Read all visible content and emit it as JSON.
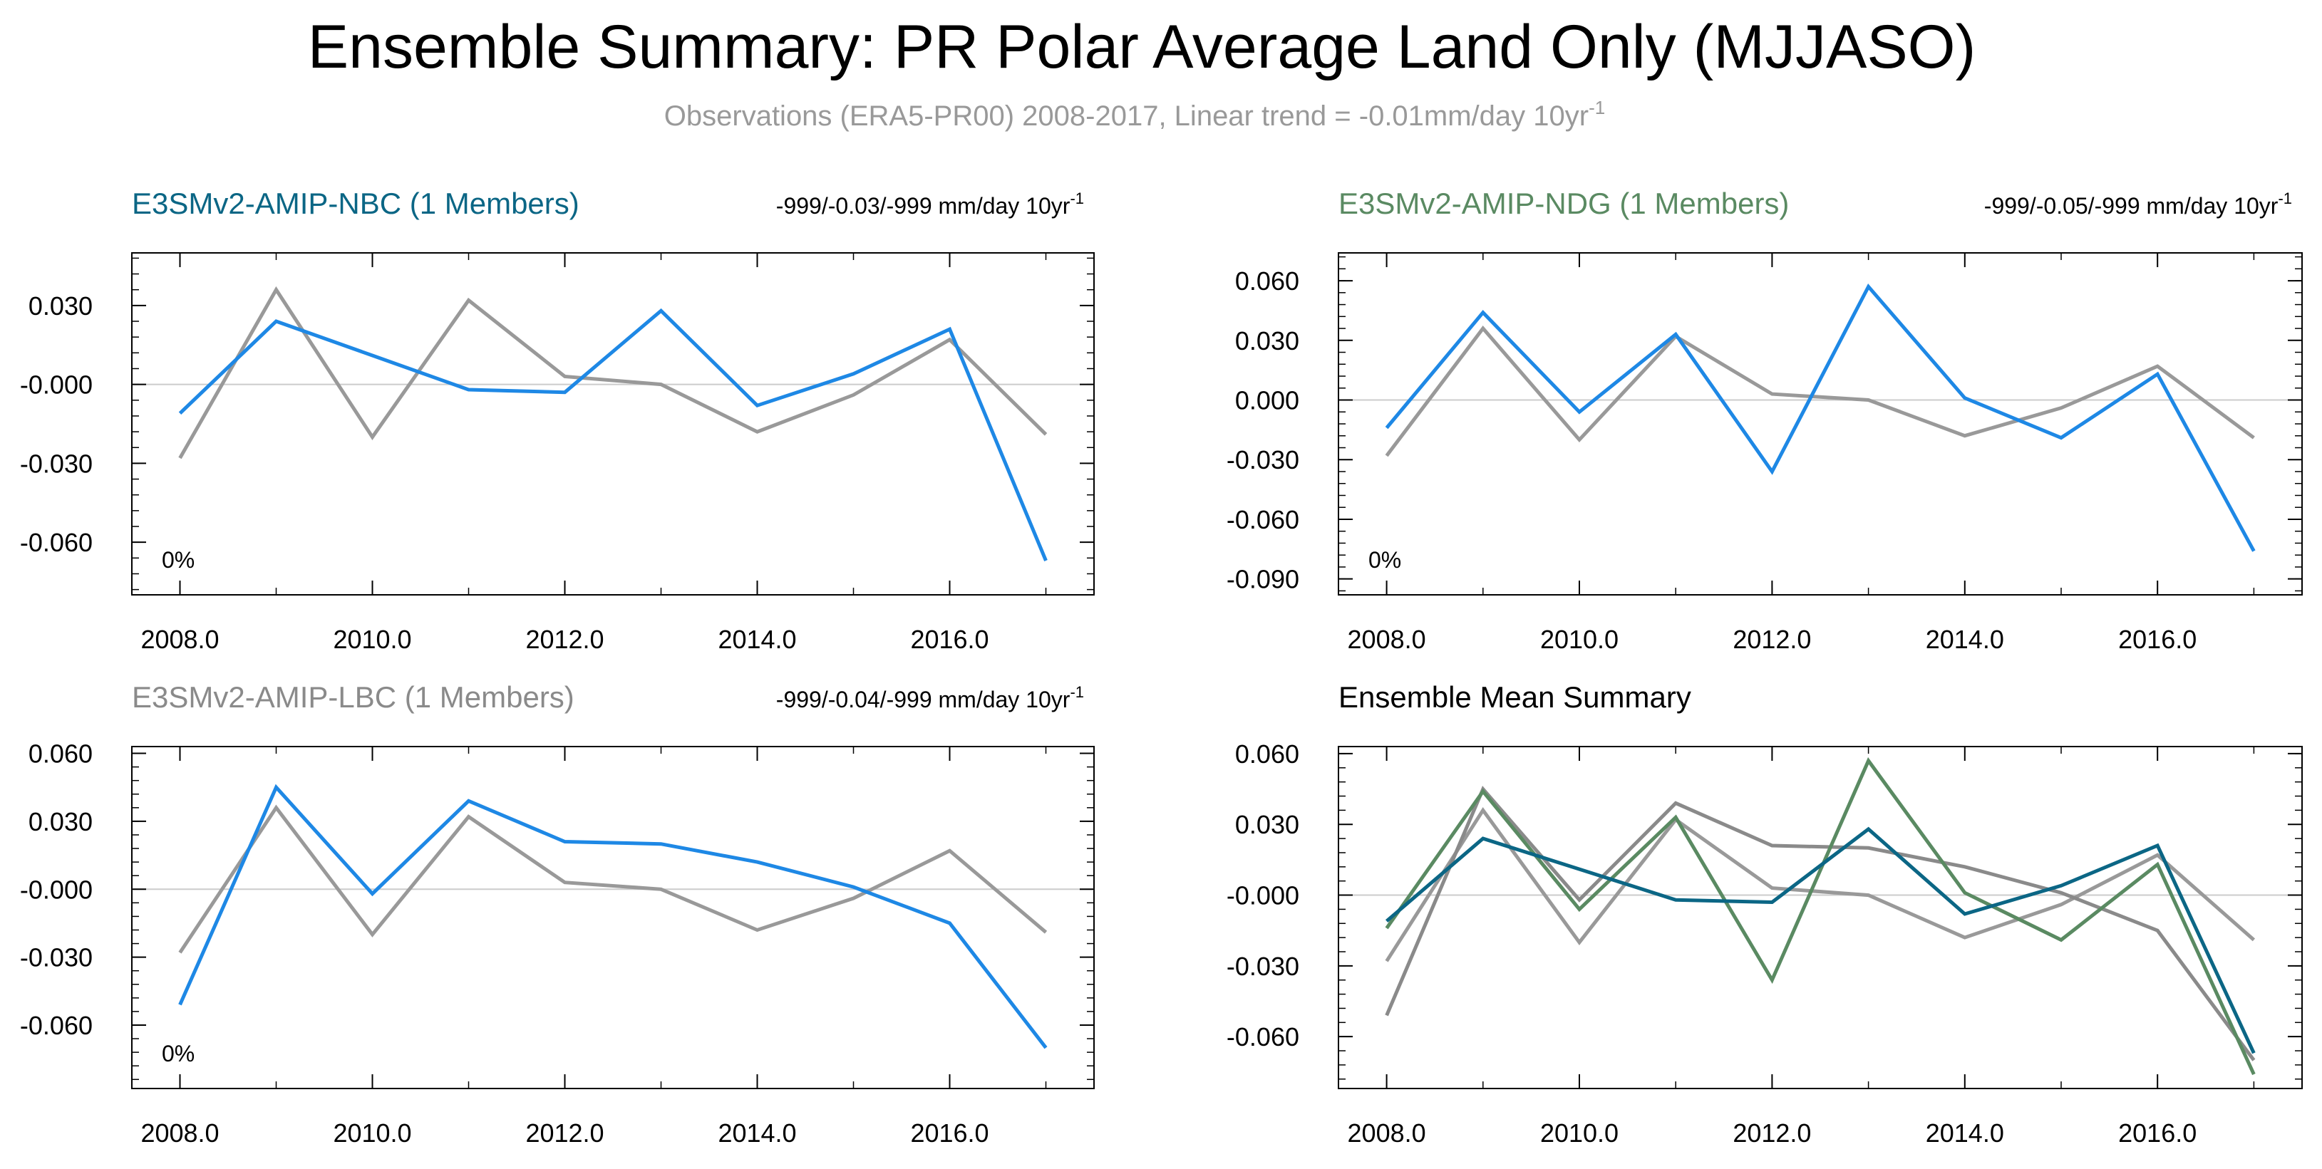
{
  "figure": {
    "title": "Ensemble Summary: PR Polar Average Land Only (MJJASO)",
    "subtitle_main": "Observations (ERA5-PR00) 2008-2017, Linear trend = -0.01mm/day 10yr",
    "subtitle_sup": "-1"
  },
  "colors": {
    "obs": "#999999",
    "model_line": "#1e88e5",
    "nbc": "#0b6685",
    "ndg": "#5a8a62",
    "lbc": "#8a8a8a",
    "title": "#000000",
    "subtitle": "#999999"
  },
  "chart_data": [
    {
      "type": "line",
      "panel": "top-left",
      "title": "E3SMv2-AMIP-NBC (1 Members)",
      "title_color": "#0b6685",
      "trend_label": "-999/-0.03/-999 mm/day 10yr",
      "trend_sup": "-1",
      "pct_label": "0%",
      "x": [
        2008,
        2009,
        2010,
        2011,
        2012,
        2013,
        2014,
        2015,
        2016,
        2017
      ],
      "xlim": [
        2007.5,
        2017.5
      ],
      "ylim": [
        -0.08,
        0.05
      ],
      "yticks": [
        -0.06,
        -0.03,
        0.0,
        0.03
      ],
      "ytick_labels": [
        "-0.060",
        "-0.030",
        "-0.000",
        "0.030"
      ],
      "xticks": [
        2008,
        2010,
        2012,
        2014,
        2016
      ],
      "xtick_labels": [
        "2008.0",
        "2010.0",
        "2012.0",
        "2014.0",
        "2016.0"
      ],
      "series": [
        {
          "role": "obs",
          "color": "#999999",
          "values": [
            -0.028,
            0.036,
            -0.02,
            0.032,
            0.003,
            0.0,
            -0.018,
            -0.004,
            0.017,
            -0.019
          ]
        },
        {
          "role": "model",
          "color": "#1e88e5",
          "values": [
            -0.011,
            0.024,
            0.011,
            -0.002,
            -0.003,
            0.028,
            -0.008,
            0.004,
            0.021,
            -0.067
          ]
        }
      ]
    },
    {
      "type": "line",
      "panel": "top-right",
      "title": "E3SMv2-AMIP-NDG (1 Members)",
      "title_color": "#5a8a62",
      "trend_label": "-999/-0.05/-999 mm/day 10yr",
      "trend_sup": "-1",
      "pct_label": "0%",
      "x": [
        2008,
        2009,
        2010,
        2011,
        2012,
        2013,
        2014,
        2015,
        2016,
        2017
      ],
      "xlim": [
        2007.5,
        2017.5
      ],
      "ylim": [
        -0.098,
        0.074
      ],
      "yticks": [
        -0.09,
        -0.06,
        -0.03,
        0.0,
        0.03,
        0.06
      ],
      "ytick_labels": [
        "-0.090",
        "-0.060",
        "-0.030",
        "0.000",
        "0.030",
        "0.060"
      ],
      "xticks": [
        2008,
        2010,
        2012,
        2014,
        2016
      ],
      "xtick_labels": [
        "2008.0",
        "2010.0",
        "2012.0",
        "2014.0",
        "2016.0"
      ],
      "series": [
        {
          "role": "obs",
          "color": "#999999",
          "values": [
            -0.028,
            0.036,
            -0.02,
            0.032,
            0.003,
            0.0,
            -0.018,
            -0.004,
            0.017,
            -0.019
          ]
        },
        {
          "role": "model",
          "color": "#1e88e5",
          "values": [
            -0.014,
            0.044,
            -0.006,
            0.033,
            -0.036,
            0.057,
            0.001,
            -0.019,
            0.013,
            -0.076
          ]
        }
      ]
    },
    {
      "type": "line",
      "panel": "bottom-left",
      "title": "E3SMv2-AMIP-LBC (1 Members)",
      "title_color": "#8a8a8a",
      "trend_label": "-999/-0.04/-999 mm/day 10yr",
      "trend_sup": "-1",
      "pct_label": "0%",
      "x": [
        2008,
        2009,
        2010,
        2011,
        2012,
        2013,
        2014,
        2015,
        2016,
        2017
      ],
      "xlim": [
        2007.5,
        2017.5
      ],
      "ylim": [
        -0.088,
        0.063
      ],
      "yticks": [
        -0.06,
        -0.03,
        0.0,
        0.03,
        0.06
      ],
      "ytick_labels": [
        "-0.060",
        "-0.030",
        "-0.000",
        "0.030",
        "0.060"
      ],
      "xticks": [
        2008,
        2010,
        2012,
        2014,
        2016
      ],
      "xtick_labels": [
        "2008.0",
        "2010.0",
        "2012.0",
        "2014.0",
        "2016.0"
      ],
      "series": [
        {
          "role": "obs",
          "color": "#999999",
          "values": [
            -0.028,
            0.036,
            -0.02,
            0.032,
            0.003,
            0.0,
            -0.018,
            -0.004,
            0.017,
            -0.019
          ]
        },
        {
          "role": "model",
          "color": "#1e88e5",
          "values": [
            -0.051,
            0.045,
            -0.002,
            0.039,
            0.021,
            0.02,
            0.012,
            0.001,
            -0.015,
            -0.07
          ]
        }
      ]
    },
    {
      "type": "line",
      "panel": "bottom-right",
      "title": "Ensemble Mean Summary",
      "title_color": "#000000",
      "trend_label": "",
      "trend_sup": "",
      "pct_label": "",
      "x": [
        2008,
        2009,
        2010,
        2011,
        2012,
        2013,
        2014,
        2015,
        2016,
        2017
      ],
      "xlim": [
        2007.5,
        2017.5
      ],
      "ylim": [
        -0.082,
        0.063
      ],
      "yticks": [
        -0.06,
        -0.03,
        0.0,
        0.03,
        0.06
      ],
      "ytick_labels": [
        "-0.060",
        "-0.030",
        "-0.000",
        "0.030",
        "0.060"
      ],
      "xticks": [
        2008,
        2010,
        2012,
        2014,
        2016
      ],
      "xtick_labels": [
        "2008.0",
        "2010.0",
        "2012.0",
        "2014.0",
        "2016.0"
      ],
      "series": [
        {
          "role": "obs",
          "color": "#999999",
          "values": [
            -0.028,
            0.036,
            -0.02,
            0.032,
            0.003,
            0.0,
            -0.018,
            -0.004,
            0.017,
            -0.019
          ]
        },
        {
          "role": "lbc",
          "color": "#8a8a8a",
          "values": [
            -0.051,
            0.045,
            -0.002,
            0.039,
            0.021,
            0.02,
            0.012,
            0.001,
            -0.015,
            -0.07
          ]
        },
        {
          "role": "ndg",
          "color": "#5a8a62",
          "values": [
            -0.014,
            0.044,
            -0.006,
            0.033,
            -0.036,
            0.057,
            0.001,
            -0.019,
            0.013,
            -0.076
          ]
        },
        {
          "role": "nbc",
          "color": "#0b6685",
          "values": [
            -0.011,
            0.024,
            0.011,
            -0.002,
            -0.003,
            0.028,
            -0.008,
            0.004,
            0.021,
            -0.067
          ]
        }
      ]
    }
  ]
}
